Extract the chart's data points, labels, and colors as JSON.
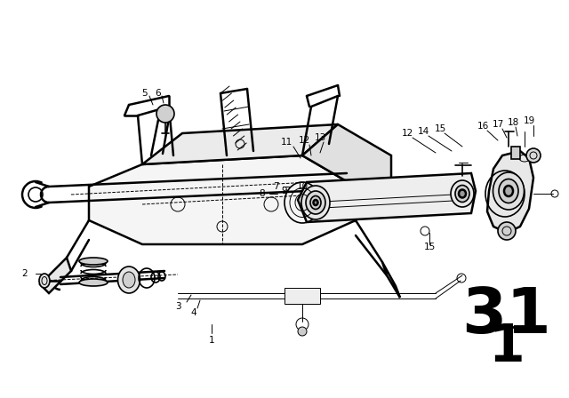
{
  "bg_color": "#ffffff",
  "line_color": "#000000",
  "fig_width": 6.4,
  "fig_height": 4.48,
  "dpi": 100,
  "big_num": "31",
  "sub_num": "1",
  "big_fontsize": 52,
  "sub_fontsize": 38,
  "label_fontsize": 7.5
}
